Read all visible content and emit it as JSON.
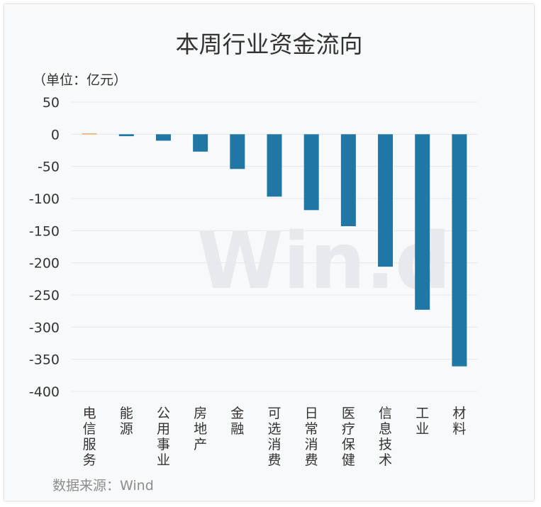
{
  "chart_data": {
    "type": "bar",
    "title": "本周行业资金流向",
    "unit_label": "（单位：亿元）",
    "source": "数据来源：Wind",
    "watermark": "Win.d",
    "categories": [
      "电信服务",
      "能源",
      "公用事业",
      "房地产",
      "金融",
      "可选消费",
      "日常消费",
      "医疗保健",
      "信息技术",
      "工业",
      "材料"
    ],
    "values": [
      0.5,
      -3,
      -10,
      -27,
      -54,
      -97,
      -118,
      -143,
      -206,
      -273,
      -361
    ],
    "ylim": [
      -400,
      50
    ],
    "yticks": [
      50,
      0,
      -50,
      -100,
      -150,
      -200,
      -250,
      -300,
      -350,
      -400
    ],
    "grid": true,
    "colors": {
      "negative": "#2177a3",
      "positive": "#f0882f",
      "grid": "#e6e8eb"
    }
  }
}
